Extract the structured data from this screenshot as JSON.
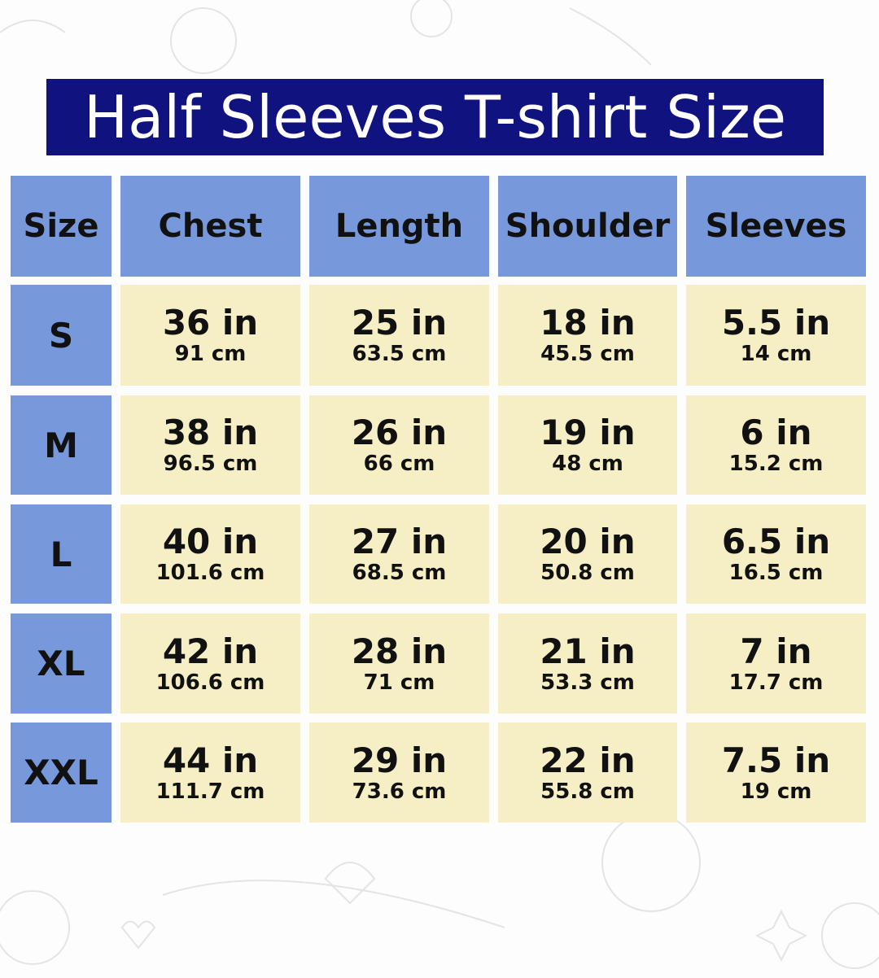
{
  "title": "Half Sleeves T-shirt Size",
  "colors": {
    "title_bg": "#10127f",
    "header_bg": "#7799dc",
    "cell_bg": "#f6efc6"
  },
  "headers": [
    "Size",
    "Chest",
    "Length",
    "Shoulder",
    "Sleeves"
  ],
  "rows": [
    {
      "size": "S",
      "cells": [
        {
          "in": "36 in",
          "cm": "91 cm"
        },
        {
          "in": "25 in",
          "cm": "63.5 cm"
        },
        {
          "in": "18 in",
          "cm": "45.5 cm"
        },
        {
          "in": "5.5 in",
          "cm": "14 cm"
        }
      ]
    },
    {
      "size": "M",
      "cells": [
        {
          "in": "38 in",
          "cm": "96.5 cm"
        },
        {
          "in": "26 in",
          "cm": "66 cm"
        },
        {
          "in": "19 in",
          "cm": "48 cm"
        },
        {
          "in": "6 in",
          "cm": "15.2 cm"
        }
      ]
    },
    {
      "size": "L",
      "cells": [
        {
          "in": "40 in",
          "cm": "101.6 cm"
        },
        {
          "in": "27 in",
          "cm": "68.5 cm"
        },
        {
          "in": "20 in",
          "cm": "50.8 cm"
        },
        {
          "in": "6.5 in",
          "cm": "16.5 cm"
        }
      ]
    },
    {
      "size": "XL",
      "cells": [
        {
          "in": "42 in",
          "cm": "106.6 cm"
        },
        {
          "in": "28 in",
          "cm": "71 cm"
        },
        {
          "in": "21 in",
          "cm": "53.3 cm"
        },
        {
          "in": "7 in",
          "cm": "17.7 cm"
        }
      ]
    },
    {
      "size": "XXL",
      "cells": [
        {
          "in": "44 in",
          "cm": "111.7 cm"
        },
        {
          "in": "29 in",
          "cm": "73.6 cm"
        },
        {
          "in": "22 in",
          "cm": "55.8 cm"
        },
        {
          "in": "7.5 in",
          "cm": "19 cm"
        }
      ]
    }
  ]
}
